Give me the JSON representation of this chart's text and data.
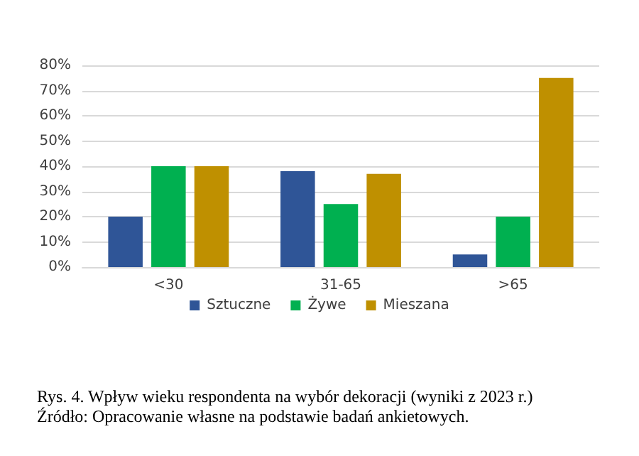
{
  "chart_data": {
    "type": "bar",
    "categories": [
      "<30",
      "31-65",
      ">65"
    ],
    "series": [
      {
        "name": "Sztuczne",
        "color": "#2f5597",
        "values": [
          20,
          38,
          5
        ]
      },
      {
        "name": "Żywe",
        "color": "#00b050",
        "values": [
          40,
          25,
          20
        ]
      },
      {
        "name": "Mieszana",
        "color": "#bf9000",
        "values": [
          40,
          37,
          75
        ]
      }
    ],
    "ylim": [
      0,
      80
    ],
    "yticks": [
      {
        "value": 0,
        "label": "0%"
      },
      {
        "value": 10,
        "label": "10%"
      },
      {
        "value": 20,
        "label": "20%"
      },
      {
        "value": 30,
        "label": "30%"
      },
      {
        "value": 40,
        "label": "40%"
      },
      {
        "value": 50,
        "label": "50%"
      },
      {
        "value": 60,
        "label": "60%"
      },
      {
        "value": 70,
        "label": "70%"
      },
      {
        "value": 80,
        "label": "80%"
      }
    ],
    "grid": "y",
    "legend": "bottom",
    "annotations": [
      "Rys. 4. Wpływ wieku respondenta na wybór dekoracji (wyniki z 2023 r.)",
      "Źródło: Opracowanie własne na podstawie badań ankietowych."
    ]
  }
}
